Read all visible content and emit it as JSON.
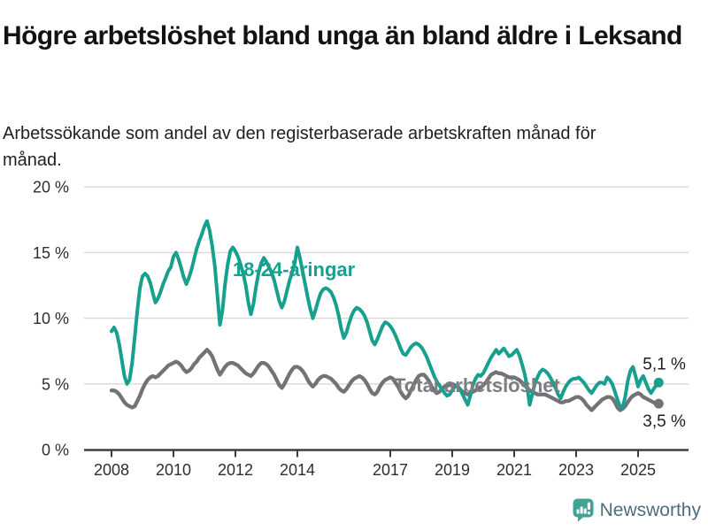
{
  "header": {
    "title": "Högre arbetslöshet bland unga än bland äldre i Leksand",
    "subtitle": "Arbetssökande som andel av den registerbaserade arbetskraften månad för månad."
  },
  "footer": {
    "brand": "Newsworthy",
    "brand_color": "#4e6d7d",
    "icon_color": "#3fa493",
    "icon": "speech-bubble-bar-chart-icon"
  },
  "chart_data": {
    "type": "line",
    "title": "Högre arbetslöshet bland unga än bland äldre i Leksand",
    "subtitle": "Arbetssökande som andel av den registerbaserade arbetskraften månad för månad.",
    "frequency": "monthly",
    "x_start": "2008-01",
    "x_end": "2025-09",
    "ylim": [
      0,
      20
    ],
    "grid": "horizontal",
    "y_tick_values": [
      0,
      5,
      10,
      15,
      20
    ],
    "y_tick_labels": [
      "0 %",
      "5 %",
      "10 %",
      "15 %",
      "20 %"
    ],
    "x_tick_years": [
      2008,
      2010,
      2012,
      2014,
      2017,
      2019,
      2021,
      2023,
      2025
    ],
    "x_tick_labels": [
      "2008",
      "2010",
      "2012",
      "2014",
      "2017",
      "2019",
      "2021",
      "2023",
      "2025"
    ],
    "series": [
      {
        "id": "youth",
        "name": "18-24-åringar",
        "color": "#18a08f",
        "end_label": "5,1 %",
        "values": [
          9.0,
          9.3,
          8.9,
          8.0,
          6.8,
          5.6,
          5.0,
          5.3,
          6.6,
          8.6,
          10.6,
          12.3,
          13.2,
          13.4,
          13.2,
          12.7,
          11.9,
          11.2,
          11.5,
          12.0,
          12.6,
          13.1,
          13.6,
          13.9,
          14.7,
          15.0,
          14.5,
          13.8,
          13.1,
          12.6,
          13.1,
          13.7,
          14.5,
          15.3,
          15.9,
          16.4,
          17.0,
          17.4,
          16.7,
          15.5,
          14.0,
          11.8,
          9.5,
          10.6,
          12.6,
          14.1,
          15.1,
          15.4,
          15.1,
          14.7,
          14.1,
          13.4,
          12.5,
          11.2,
          10.3,
          11.1,
          12.4,
          13.5,
          14.2,
          14.6,
          14.3,
          13.9,
          13.5,
          12.9,
          12.1,
          11.3,
          10.8,
          11.3,
          12.1,
          12.9,
          13.5,
          14.2,
          15.4,
          14.6,
          13.6,
          12.6,
          11.6,
          10.7,
          10.0,
          10.6,
          11.3,
          11.9,
          12.2,
          12.3,
          12.2,
          12.0,
          11.6,
          11.0,
          10.2,
          9.2,
          8.5,
          8.9,
          9.6,
          10.2,
          10.6,
          10.8,
          10.7,
          10.5,
          10.2,
          9.7,
          9.0,
          8.3,
          8.0,
          8.4,
          8.9,
          9.4,
          9.7,
          9.6,
          9.4,
          9.1,
          8.7,
          8.2,
          7.7,
          7.3,
          7.2,
          7.5,
          7.8,
          8.0,
          8.1,
          8.0,
          7.8,
          7.5,
          7.1,
          6.6,
          6.1,
          5.6,
          5.2,
          4.9,
          4.6,
          4.3,
          4.1,
          4.2,
          4.5,
          4.8,
          4.9,
          4.6,
          4.2,
          3.8,
          3.4,
          4.1,
          4.9,
          5.4,
          5.7,
          5.6,
          5.8,
          6.2,
          6.6,
          7.0,
          7.3,
          7.6,
          7.3,
          7.5,
          7.7,
          7.4,
          7.1,
          7.2,
          7.4,
          7.6,
          7.2,
          6.5,
          5.8,
          4.8,
          3.4,
          4.2,
          5.0,
          5.5,
          5.9,
          6.1,
          6.0,
          5.8,
          5.5,
          5.1,
          4.7,
          4.2,
          3.9,
          4.4,
          4.8,
          5.1,
          5.3,
          5.4,
          5.4,
          5.5,
          5.3,
          5.1,
          4.8,
          4.5,
          4.3,
          4.6,
          4.9,
          5.1,
          5.1,
          5.0,
          5.5,
          5.3,
          5.0,
          4.4,
          3.8,
          3.3,
          3.2,
          4.0,
          5.2,
          6.0,
          6.3,
          5.6,
          4.8,
          5.3,
          5.6,
          5.1,
          4.6,
          4.3,
          4.6,
          4.9,
          5.1
        ]
      },
      {
        "id": "total",
        "name": "Total arbetslöshet",
        "color": "#737377",
        "label_color": "#7e7e82",
        "end_label": "3,5 %",
        "values": [
          4.5,
          4.5,
          4.4,
          4.2,
          3.9,
          3.6,
          3.4,
          3.3,
          3.2,
          3.3,
          3.7,
          4.1,
          4.6,
          5.0,
          5.3,
          5.5,
          5.6,
          5.5,
          5.6,
          5.8,
          6.0,
          6.2,
          6.4,
          6.5,
          6.6,
          6.7,
          6.6,
          6.4,
          6.1,
          5.9,
          6.0,
          6.2,
          6.5,
          6.7,
          7.0,
          7.2,
          7.4,
          7.6,
          7.4,
          7.1,
          6.6,
          6.1,
          5.7,
          6.0,
          6.3,
          6.5,
          6.6,
          6.6,
          6.5,
          6.4,
          6.2,
          6.0,
          5.8,
          5.7,
          5.6,
          5.8,
          6.1,
          6.4,
          6.6,
          6.6,
          6.5,
          6.3,
          6.0,
          5.7,
          5.3,
          4.9,
          4.7,
          5.0,
          5.4,
          5.8,
          6.1,
          6.3,
          6.3,
          6.2,
          6.0,
          5.7,
          5.3,
          5.0,
          4.8,
          5.0,
          5.3,
          5.5,
          5.6,
          5.6,
          5.5,
          5.4,
          5.2,
          5.0,
          4.7,
          4.5,
          4.4,
          4.6,
          4.9,
          5.2,
          5.4,
          5.5,
          5.6,
          5.5,
          5.3,
          5.0,
          4.6,
          4.3,
          4.2,
          4.4,
          4.8,
          5.1,
          5.3,
          5.4,
          5.5,
          5.4,
          5.1,
          4.8,
          4.4,
          4.1,
          3.9,
          4.1,
          4.5,
          4.9,
          5.3,
          5.6,
          5.7,
          5.7,
          5.5,
          5.2,
          4.8,
          4.5,
          4.3,
          4.4,
          4.6,
          4.8,
          4.9,
          5.0,
          5.0,
          4.9,
          4.8,
          4.6,
          4.4,
          4.3,
          4.2,
          4.3,
          4.4,
          4.5,
          4.6,
          4.7,
          4.9,
          5.1,
          5.4,
          5.7,
          5.8,
          5.9,
          5.8,
          5.8,
          5.7,
          5.6,
          5.5,
          5.5,
          5.5,
          5.4,
          5.3,
          5.1,
          4.9,
          4.7,
          4.5,
          4.4,
          4.3,
          4.2,
          4.2,
          4.2,
          4.2,
          4.1,
          4.0,
          3.9,
          3.8,
          3.7,
          3.6,
          3.6,
          3.7,
          3.7,
          3.8,
          3.9,
          4.0,
          4.0,
          3.9,
          3.7,
          3.4,
          3.2,
          3.0,
          3.2,
          3.4,
          3.6,
          3.8,
          3.9,
          4.0,
          4.0,
          3.9,
          3.6,
          3.2,
          3.0,
          3.1,
          3.3,
          3.6,
          3.9,
          4.1,
          4.2,
          4.3,
          4.2,
          4.0,
          3.9,
          3.8,
          3.7,
          3.6,
          3.5,
          3.5
        ]
      }
    ]
  }
}
